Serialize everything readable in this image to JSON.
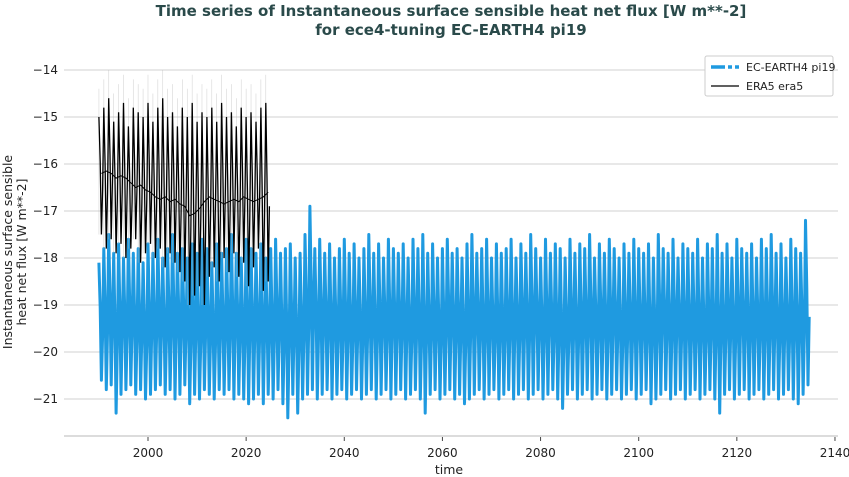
{
  "chart_data": {
    "type": "line",
    "title": "Time series of Instantaneous surface sensible heat net flux [W m**-2]",
    "subtitle": "for ece4-tuning EC-EARTH4 pi19",
    "xlabel": "time",
    "ylabel_line1": "Instantaneous surface sensible",
    "ylabel_line2": "heat net flux [W m**-2]",
    "xlim": [
      1983,
      2142
    ],
    "ylim": [
      -21.8,
      -13.9
    ],
    "xticks": [
      2000,
      2020,
      2040,
      2060,
      2080,
      2100,
      2120,
      2140
    ],
    "yticks": [
      -14,
      -15,
      -16,
      -17,
      -18,
      -19,
      -20,
      -21
    ],
    "grid": "horizontal",
    "legend_position": "top-right",
    "series": [
      {
        "name": "EC-EARTH4 pi19",
        "color": "#1f9ae0",
        "style": "dashed-thick",
        "time_range": [
          1990,
          2134
        ],
        "seasonal_max": [
          -18.1,
          -17.8,
          -17.5,
          -17.9,
          -17.7,
          -18.0,
          -17.6,
          -17.9,
          -17.8,
          -18.1,
          -17.7,
          -17.9,
          -17.6,
          -18.0,
          -17.8,
          -17.5,
          -17.9,
          -17.8,
          -18.0,
          -17.7,
          -17.9,
          -17.6,
          -17.8,
          -18.1,
          -17.7,
          -17.9,
          -17.8,
          -17.5,
          -17.9,
          -18.0,
          -17.6,
          -17.8,
          -17.9,
          -17.7,
          -18.0,
          -17.8,
          -17.6,
          -17.9,
          -17.8,
          -17.7,
          -18.0,
          -17.9,
          -17.5,
          -16.9,
          -17.8,
          -17.6,
          -17.9,
          -17.7,
          -18.0,
          -17.8,
          -17.6,
          -17.9,
          -17.7,
          -18.0,
          -17.8,
          -17.5,
          -17.9,
          -17.7,
          -18.0,
          -17.6,
          -17.8,
          -17.9,
          -17.7,
          -18.0,
          -17.6,
          -17.8,
          -17.5,
          -17.9,
          -17.7,
          -18.0,
          -17.8,
          -17.6,
          -17.9,
          -17.8,
          -18.0,
          -17.7,
          -17.5,
          -17.9,
          -17.8,
          -17.6,
          -18.0,
          -17.7,
          -17.9,
          -17.8,
          -17.6,
          -18.0,
          -17.7,
          -17.9,
          -17.5,
          -17.8,
          -18.0,
          -17.6,
          -17.9,
          -17.7,
          -17.8,
          -18.0,
          -17.6,
          -17.9,
          -17.7,
          -17.8,
          -17.5,
          -18.0,
          -17.7,
          -17.9,
          -17.6,
          -17.8,
          -18.0,
          -17.7,
          -17.9,
          -17.6,
          -17.8,
          -17.9,
          -17.7,
          -18.0,
          -17.5,
          -17.8,
          -17.9,
          -17.6,
          -18.0,
          -17.7,
          -17.8,
          -17.9,
          -17.6,
          -18.0,
          -17.7,
          -17.8,
          -17.5,
          -17.9,
          -17.7,
          -18.0,
          -17.6,
          -17.8,
          -17.9,
          -17.7,
          -18.0,
          -17.6,
          -17.8,
          -17.5,
          -17.9,
          -17.7,
          -18.0,
          -17.6,
          -17.8,
          -17.9,
          -17.2
        ],
        "seasonal_min": [
          -20.6,
          -20.8,
          -20.7,
          -21.3,
          -20.9,
          -20.8,
          -20.7,
          -20.9,
          -20.8,
          -21.0,
          -20.9,
          -20.8,
          -20.7,
          -20.9,
          -20.8,
          -21.0,
          -20.9,
          -20.7,
          -21.1,
          -20.9,
          -21.0,
          -20.8,
          -20.9,
          -21.0,
          -20.8,
          -20.9,
          -20.8,
          -21.0,
          -20.9,
          -21.0,
          -21.1,
          -21.0,
          -20.9,
          -21.1,
          -20.9,
          -21.0,
          -20.8,
          -21.1,
          -21.4,
          -20.9,
          -21.3,
          -21.0,
          -20.9,
          -20.8,
          -21.0,
          -20.9,
          -20.8,
          -21.0,
          -20.9,
          -20.8,
          -21.0,
          -20.9,
          -20.8,
          -21.0,
          -20.9,
          -20.8,
          -21.0,
          -20.9,
          -20.8,
          -21.0,
          -20.9,
          -20.8,
          -21.0,
          -20.9,
          -20.8,
          -21.0,
          -21.3,
          -20.9,
          -20.8,
          -21.0,
          -20.9,
          -20.8,
          -21.0,
          -20.9,
          -21.1,
          -21.0,
          -20.9,
          -20.8,
          -21.0,
          -20.9,
          -20.8,
          -21.0,
          -20.9,
          -20.8,
          -21.0,
          -20.9,
          -20.8,
          -21.0,
          -20.9,
          -20.8,
          -21.0,
          -20.9,
          -20.8,
          -21.0,
          -21.2,
          -20.9,
          -20.8,
          -21.0,
          -20.9,
          -20.8,
          -21.0,
          -20.9,
          -20.8,
          -21.0,
          -20.9,
          -20.8,
          -21.0,
          -20.9,
          -20.8,
          -21.0,
          -20.9,
          -20.8,
          -21.1,
          -21.0,
          -20.9,
          -20.8,
          -21.0,
          -20.9,
          -20.8,
          -21.0,
          -20.9,
          -20.8,
          -21.0,
          -20.9,
          -20.8,
          -21.0,
          -21.3,
          -20.9,
          -20.8,
          -21.0,
          -20.9,
          -20.8,
          -21.0,
          -20.9,
          -20.8,
          -21.0,
          -20.9,
          -20.8,
          -21.0,
          -20.9,
          -20.8,
          -21.0,
          -21.1,
          -20.9,
          -20.7
        ]
      },
      {
        "name": "ERA5 era5",
        "color": "#000000",
        "style": "solid",
        "time_range": [
          1990,
          2024
        ],
        "seasonal_max": [
          -15.0,
          -14.8,
          -14.6,
          -15.1,
          -14.9,
          -14.7,
          -15.2,
          -14.8,
          -14.9,
          -15.0,
          -14.7,
          -15.1,
          -14.8,
          -14.6,
          -15.0,
          -14.9,
          -15.2,
          -14.8,
          -15.0,
          -14.7,
          -15.1,
          -14.9,
          -15.0,
          -14.8,
          -15.1,
          -14.7,
          -15.0,
          -14.9,
          -15.2,
          -14.8,
          -15.0,
          -14.9,
          -15.1,
          -14.8,
          -14.7
        ],
        "seasonal_min": [
          -17.5,
          -17.8,
          -17.6,
          -17.9,
          -17.7,
          -18.0,
          -17.8,
          -17.6,
          -18.1,
          -17.9,
          -17.7,
          -18.0,
          -17.8,
          -18.2,
          -17.9,
          -18.1,
          -18.3,
          -18.5,
          -19.0,
          -18.8,
          -18.6,
          -19.0,
          -18.4,
          -18.2,
          -18.5,
          -18.0,
          -18.3,
          -17.9,
          -18.4,
          -18.1,
          -18.6,
          -18.2,
          -17.8,
          -18.7,
          -18.5
        ],
        "running_mean": [
          -16.2,
          -16.15,
          -16.2,
          -16.3,
          -16.25,
          -16.3,
          -16.4,
          -16.5,
          -16.45,
          -16.55,
          -16.6,
          -16.7,
          -16.75,
          -16.7,
          -16.8,
          -16.75,
          -16.85,
          -16.9,
          -17.1,
          -17.05,
          -16.95,
          -16.8,
          -16.7,
          -16.75,
          -16.8,
          -16.85,
          -16.8,
          -16.75,
          -16.8,
          -16.7,
          -16.75,
          -16.8,
          -16.75,
          -16.7,
          -16.6
        ]
      }
    ]
  }
}
